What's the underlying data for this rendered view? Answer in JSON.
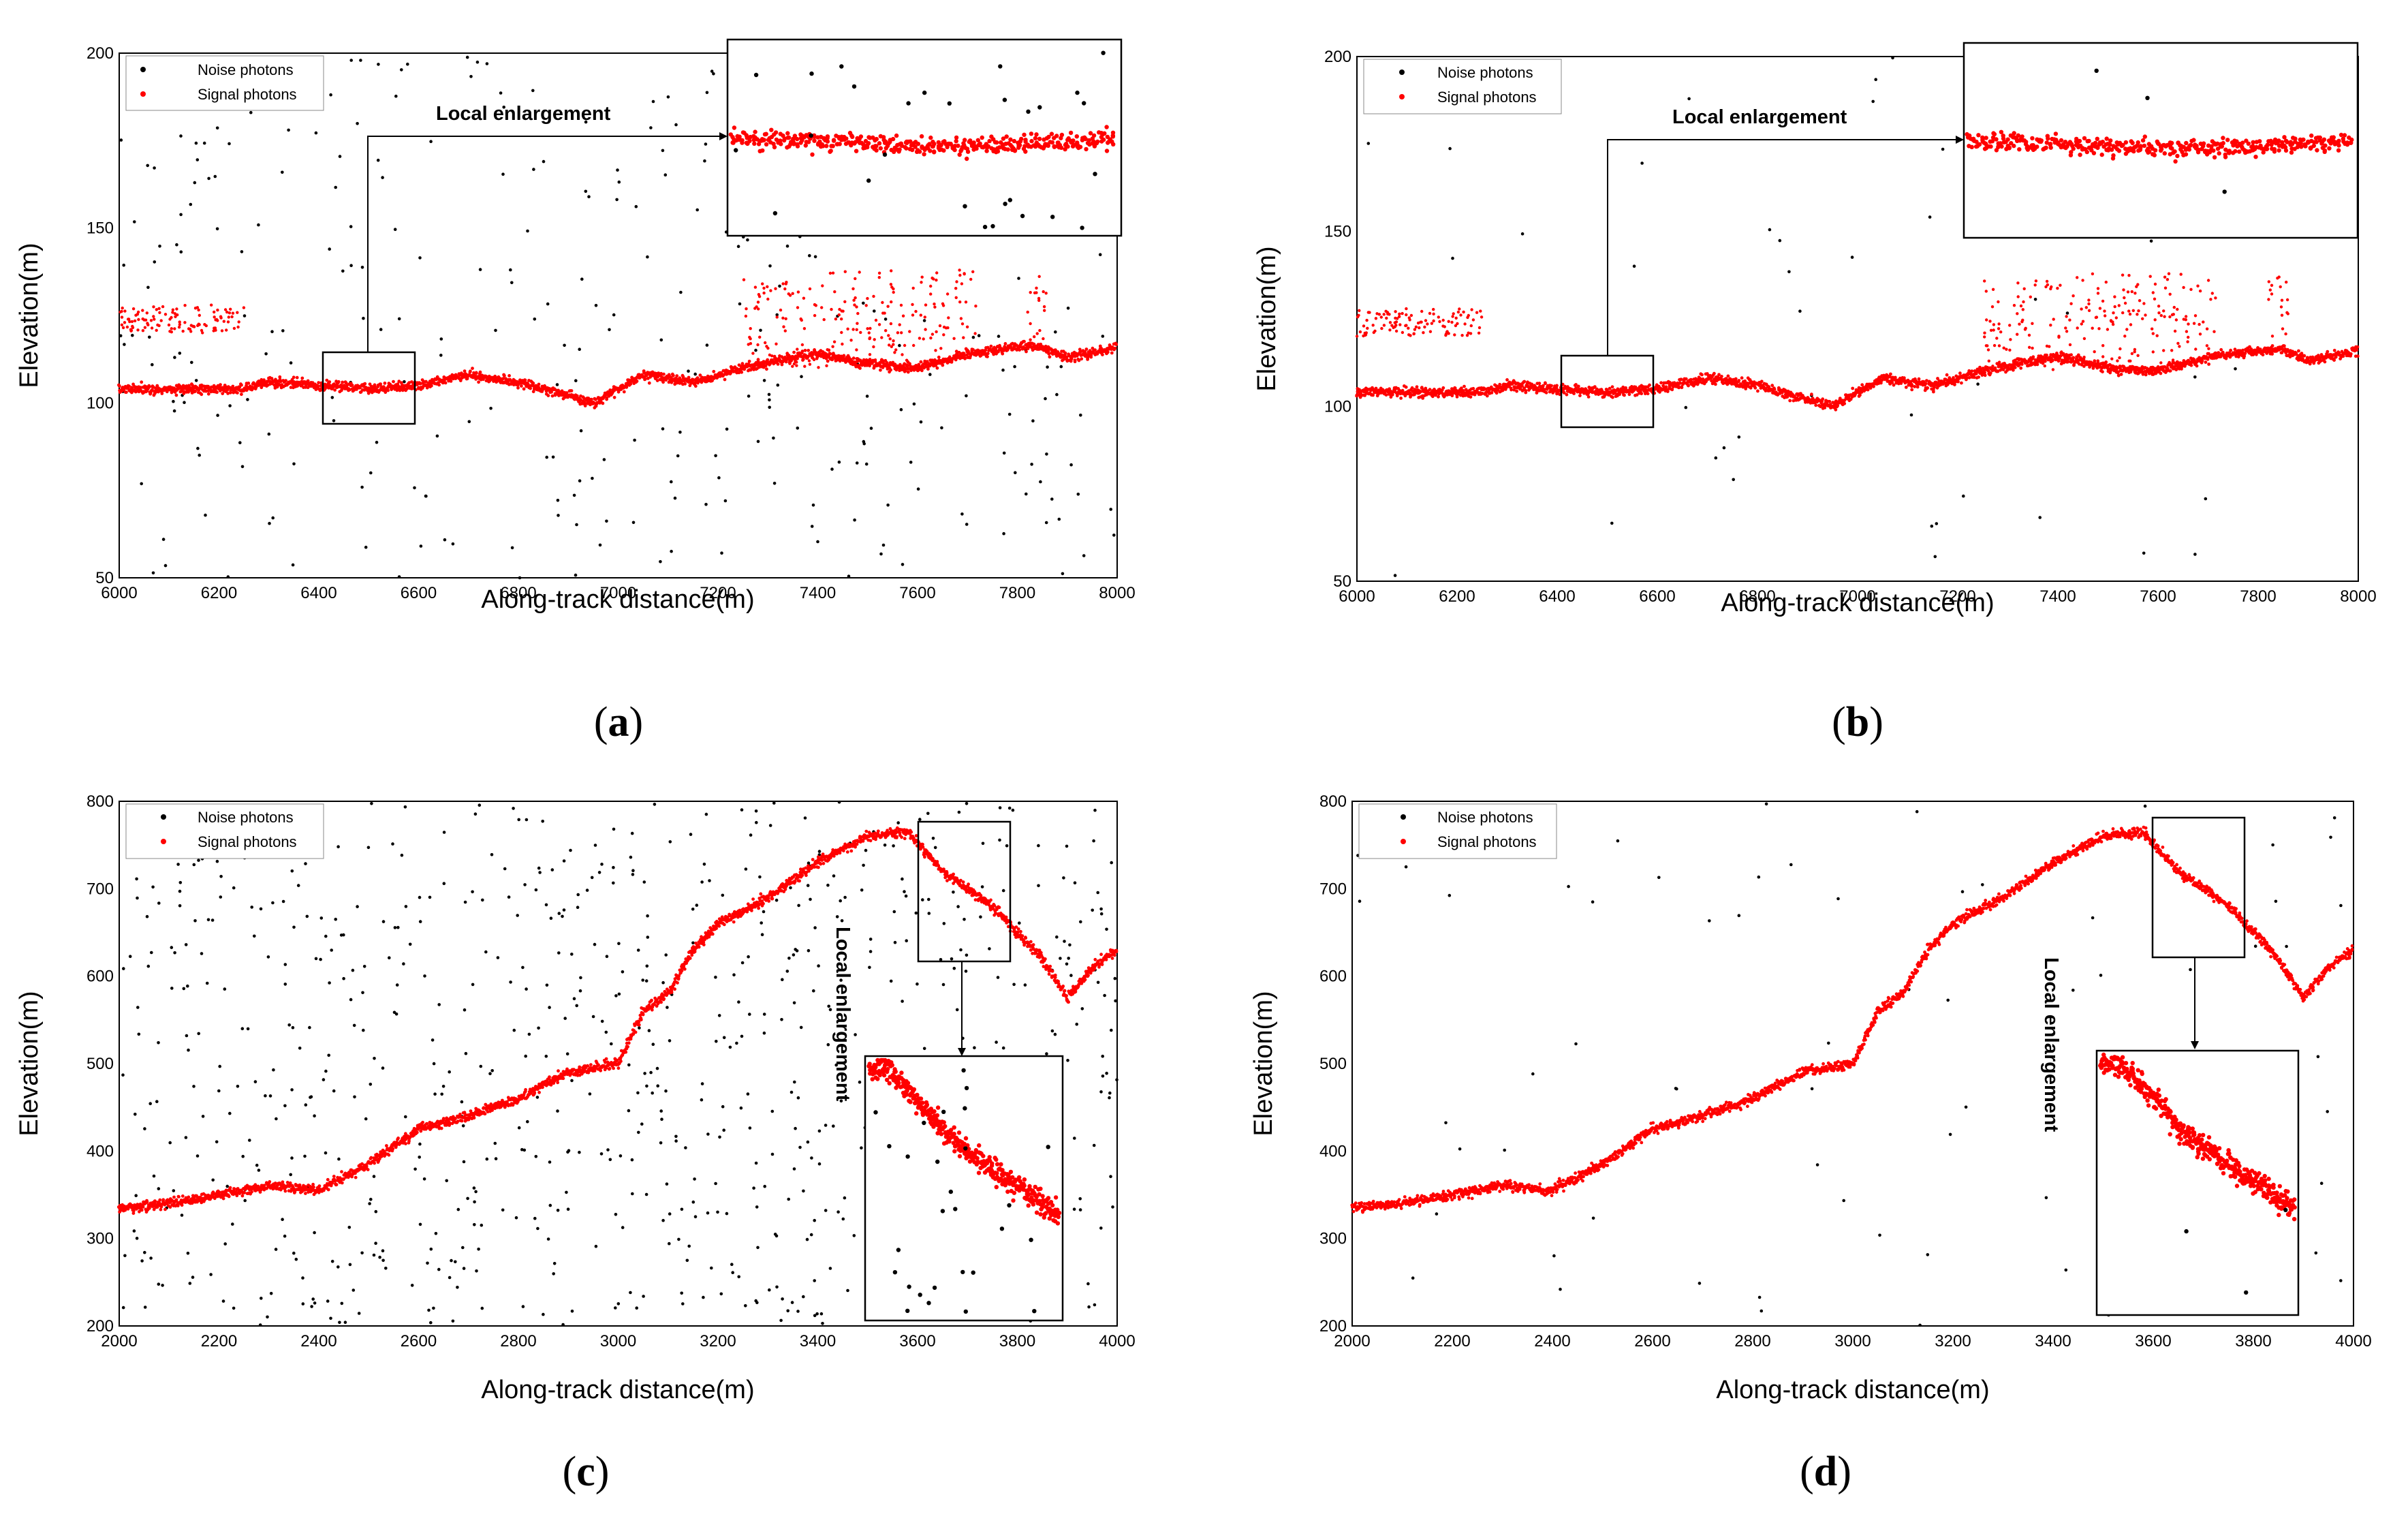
{
  "figure": {
    "legend_noise": "Noise photons",
    "legend_signal": "Signal photons",
    "local_enlargement": "Local enlargement",
    "xlabel": "Along-track distance(m)",
    "ylabel": "Elevation(m)",
    "noise_color": "#000000",
    "signal_color": "#ff0000"
  },
  "chart_data": [
    {
      "id": "a",
      "caption_letter": "a",
      "type": "scatter",
      "variant": "with_noise",
      "title": "",
      "xlabel": "Along-track distance(m)",
      "ylabel": "Elevation(m)",
      "xlim": [
        6000,
        8000
      ],
      "ylim": [
        50,
        200
      ],
      "xticks": [
        6000,
        6200,
        6400,
        6600,
        6800,
        7000,
        7200,
        7400,
        7600,
        7800,
        8000
      ],
      "yticks": [
        50,
        100,
        150,
        200
      ],
      "legend": [
        "Noise photons",
        "Signal photons"
      ],
      "legend_position": "top-left",
      "ground_profile": [
        [
          6000,
          104
        ],
        [
          6250,
          104
        ],
        [
          6300,
          106
        ],
        [
          6400,
          105
        ],
        [
          6500,
          104
        ],
        [
          6600,
          105
        ],
        [
          6700,
          108
        ],
        [
          6800,
          106
        ],
        [
          6900,
          102
        ],
        [
          6950,
          100
        ],
        [
          7000,
          104
        ],
        [
          7050,
          108
        ],
        [
          7150,
          106
        ],
        [
          7250,
          110
        ],
        [
          7350,
          113
        ],
        [
          7400,
          114
        ],
        [
          7500,
          111
        ],
        [
          7600,
          110
        ],
        [
          7700,
          114
        ],
        [
          7800,
          116
        ],
        [
          7850,
          116
        ],
        [
          7900,
          113
        ],
        [
          8000,
          116
        ]
      ],
      "canopy_segments": [
        [
          6000,
          6250,
          120,
          128
        ],
        [
          7250,
          7420,
          110,
          136
        ],
        [
          7420,
          7720,
          112,
          138
        ],
        [
          7820,
          7860,
          118,
          137
        ]
      ],
      "noise_count": 340,
      "zoom_box": {
        "x": [
          6400,
          6580
        ],
        "y": [
          95,
          115
        ]
      },
      "inset_anchor": "top-right"
    },
    {
      "id": "b",
      "caption_letter": "b",
      "type": "scatter",
      "variant": "denoised",
      "title": "",
      "xlabel": "Along-track distance(m)",
      "ylabel": "Elevation(m)",
      "xlim": [
        6000,
        8000
      ],
      "ylim": [
        50,
        200
      ],
      "xticks": [
        6000,
        6200,
        6400,
        6600,
        6800,
        7000,
        7200,
        7400,
        7600,
        7800,
        8000
      ],
      "yticks": [
        50,
        100,
        150,
        200
      ],
      "legend": [
        "Noise photons",
        "Signal photons"
      ],
      "legend_position": "top-left",
      "ground_profile": [
        [
          6000,
          104
        ],
        [
          6250,
          104
        ],
        [
          6300,
          106
        ],
        [
          6400,
          105
        ],
        [
          6500,
          104
        ],
        [
          6600,
          105
        ],
        [
          6700,
          108
        ],
        [
          6800,
          106
        ],
        [
          6900,
          102
        ],
        [
          6950,
          100
        ],
        [
          7000,
          104
        ],
        [
          7050,
          108
        ],
        [
          7150,
          106
        ],
        [
          7250,
          110
        ],
        [
          7350,
          113
        ],
        [
          7400,
          114
        ],
        [
          7500,
          111
        ],
        [
          7600,
          110
        ],
        [
          7700,
          114
        ],
        [
          7800,
          116
        ],
        [
          7850,
          116
        ],
        [
          7900,
          113
        ],
        [
          8000,
          116
        ]
      ],
      "canopy_segments": [
        [
          6000,
          6250,
          120,
          128
        ],
        [
          7250,
          7420,
          110,
          136
        ],
        [
          7420,
          7720,
          112,
          138
        ],
        [
          7820,
          7860,
          118,
          137
        ]
      ],
      "noise_count": 45,
      "zoom_box": {
        "x": [
          6400,
          6580
        ],
        "y": [
          95,
          115
        ]
      },
      "inset_anchor": "top-right"
    },
    {
      "id": "c",
      "caption_letter": "c",
      "type": "scatter",
      "variant": "with_noise",
      "title": "",
      "xlabel": "Along-track distance(m)",
      "ylabel": "Elevation(m)",
      "xlim": [
        2000,
        4000
      ],
      "ylim": [
        200,
        800
      ],
      "xticks": [
        2000,
        2200,
        2400,
        2600,
        2800,
        3000,
        3200,
        3400,
        3600,
        3800,
        4000
      ],
      "yticks": [
        200,
        300,
        400,
        500,
        600,
        700,
        800
      ],
      "legend": [
        "Noise photons",
        "Signal photons"
      ],
      "legend_position": "top-left",
      "ground_profile": [
        [
          2000,
          335
        ],
        [
          2100,
          340
        ],
        [
          2200,
          350
        ],
        [
          2300,
          360
        ],
        [
          2400,
          355
        ],
        [
          2500,
          385
        ],
        [
          2600,
          425
        ],
        [
          2700,
          440
        ],
        [
          2800,
          460
        ],
        [
          2900,
          490
        ],
        [
          3000,
          500
        ],
        [
          3050,
          560
        ],
        [
          3100,
          580
        ],
        [
          3150,
          630
        ],
        [
          3200,
          660
        ],
        [
          3300,
          690
        ],
        [
          3400,
          730
        ],
        [
          3500,
          760
        ],
        [
          3580,
          765
        ],
        [
          3650,
          720
        ],
        [
          3750,
          680
        ],
        [
          3850,
          620
        ],
        [
          3900,
          575
        ],
        [
          3950,
          610
        ],
        [
          4000,
          630
        ]
      ],
      "canopy_segments": [],
      "noise_count": 760,
      "zoom_box": {
        "x": [
          3560,
          3750
        ],
        "y": [
          620,
          770
        ]
      },
      "inset_anchor": "bottom-right"
    },
    {
      "id": "d",
      "caption_letter": "d",
      "type": "scatter",
      "variant": "denoised",
      "title": "",
      "xlabel": "Along-track distance(m)",
      "ylabel": "Elevation(m)",
      "xlim": [
        2000,
        4000
      ],
      "ylim": [
        200,
        800
      ],
      "xticks": [
        2000,
        2200,
        2400,
        2600,
        2800,
        3000,
        3200,
        3400,
        3600,
        3800,
        4000
      ],
      "yticks": [
        200,
        300,
        400,
        500,
        600,
        700,
        800
      ],
      "legend": [
        "Noise photons",
        "Signal photons"
      ],
      "legend_position": "top-left",
      "ground_profile": [
        [
          2000,
          335
        ],
        [
          2100,
          340
        ],
        [
          2200,
          350
        ],
        [
          2300,
          360
        ],
        [
          2400,
          355
        ],
        [
          2500,
          385
        ],
        [
          2600,
          425
        ],
        [
          2700,
          440
        ],
        [
          2800,
          460
        ],
        [
          2900,
          490
        ],
        [
          3000,
          500
        ],
        [
          3050,
          560
        ],
        [
          3100,
          580
        ],
        [
          3150,
          630
        ],
        [
          3200,
          660
        ],
        [
          3300,
          690
        ],
        [
          3400,
          730
        ],
        [
          3500,
          760
        ],
        [
          3580,
          765
        ],
        [
          3650,
          720
        ],
        [
          3750,
          680
        ],
        [
          3850,
          620
        ],
        [
          3900,
          575
        ],
        [
          3950,
          610
        ],
        [
          4000,
          630
        ]
      ],
      "canopy_segments": [],
      "noise_count": 70,
      "zoom_box": {
        "x": [
          3560,
          3750
        ],
        "y": [
          620,
          770
        ]
      },
      "inset_anchor": "bottom-right"
    }
  ]
}
